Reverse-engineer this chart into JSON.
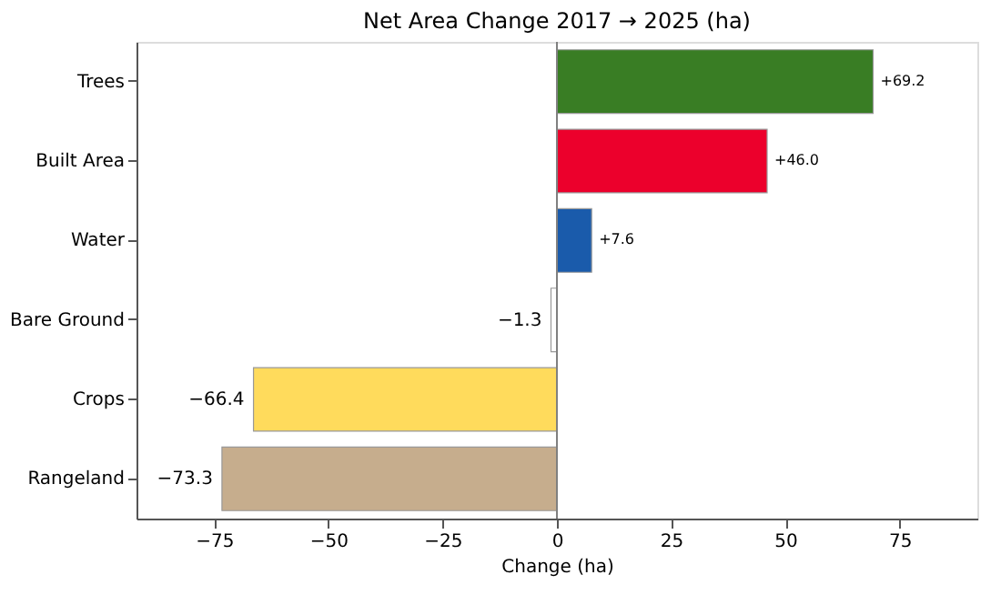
{
  "chart_data": {
    "type": "bar",
    "orientation": "horizontal",
    "title": "Net Area Change 2017 → 2025 (ha)",
    "xlabel": "Change (ha)",
    "categories": [
      "Trees",
      "Built Area",
      "Water",
      "Bare Ground",
      "Crops",
      "Rangeland"
    ],
    "values": [
      69.2,
      46.0,
      7.6,
      -1.3,
      -66.4,
      -73.3
    ],
    "value_labels": [
      "+69.2",
      "+46.0",
      "+7.6",
      "−1.3",
      "−66.4",
      "−73.3"
    ],
    "colors": [
      "#397d24",
      "#ec002c",
      "#1a5bab",
      "#ffffff",
      "#ffdb5c",
      "#c6ad8d"
    ],
    "xlim": [
      -92,
      92
    ],
    "xticks": [
      {
        "value": -75,
        "label": "−75"
      },
      {
        "value": -50,
        "label": "−50"
      },
      {
        "value": -25,
        "label": "−25"
      },
      0,
      25,
      50,
      75
    ],
    "ref_lines": [
      {
        "axis": "x",
        "value": 0,
        "color": "#808080"
      }
    ],
    "grid": false
  }
}
